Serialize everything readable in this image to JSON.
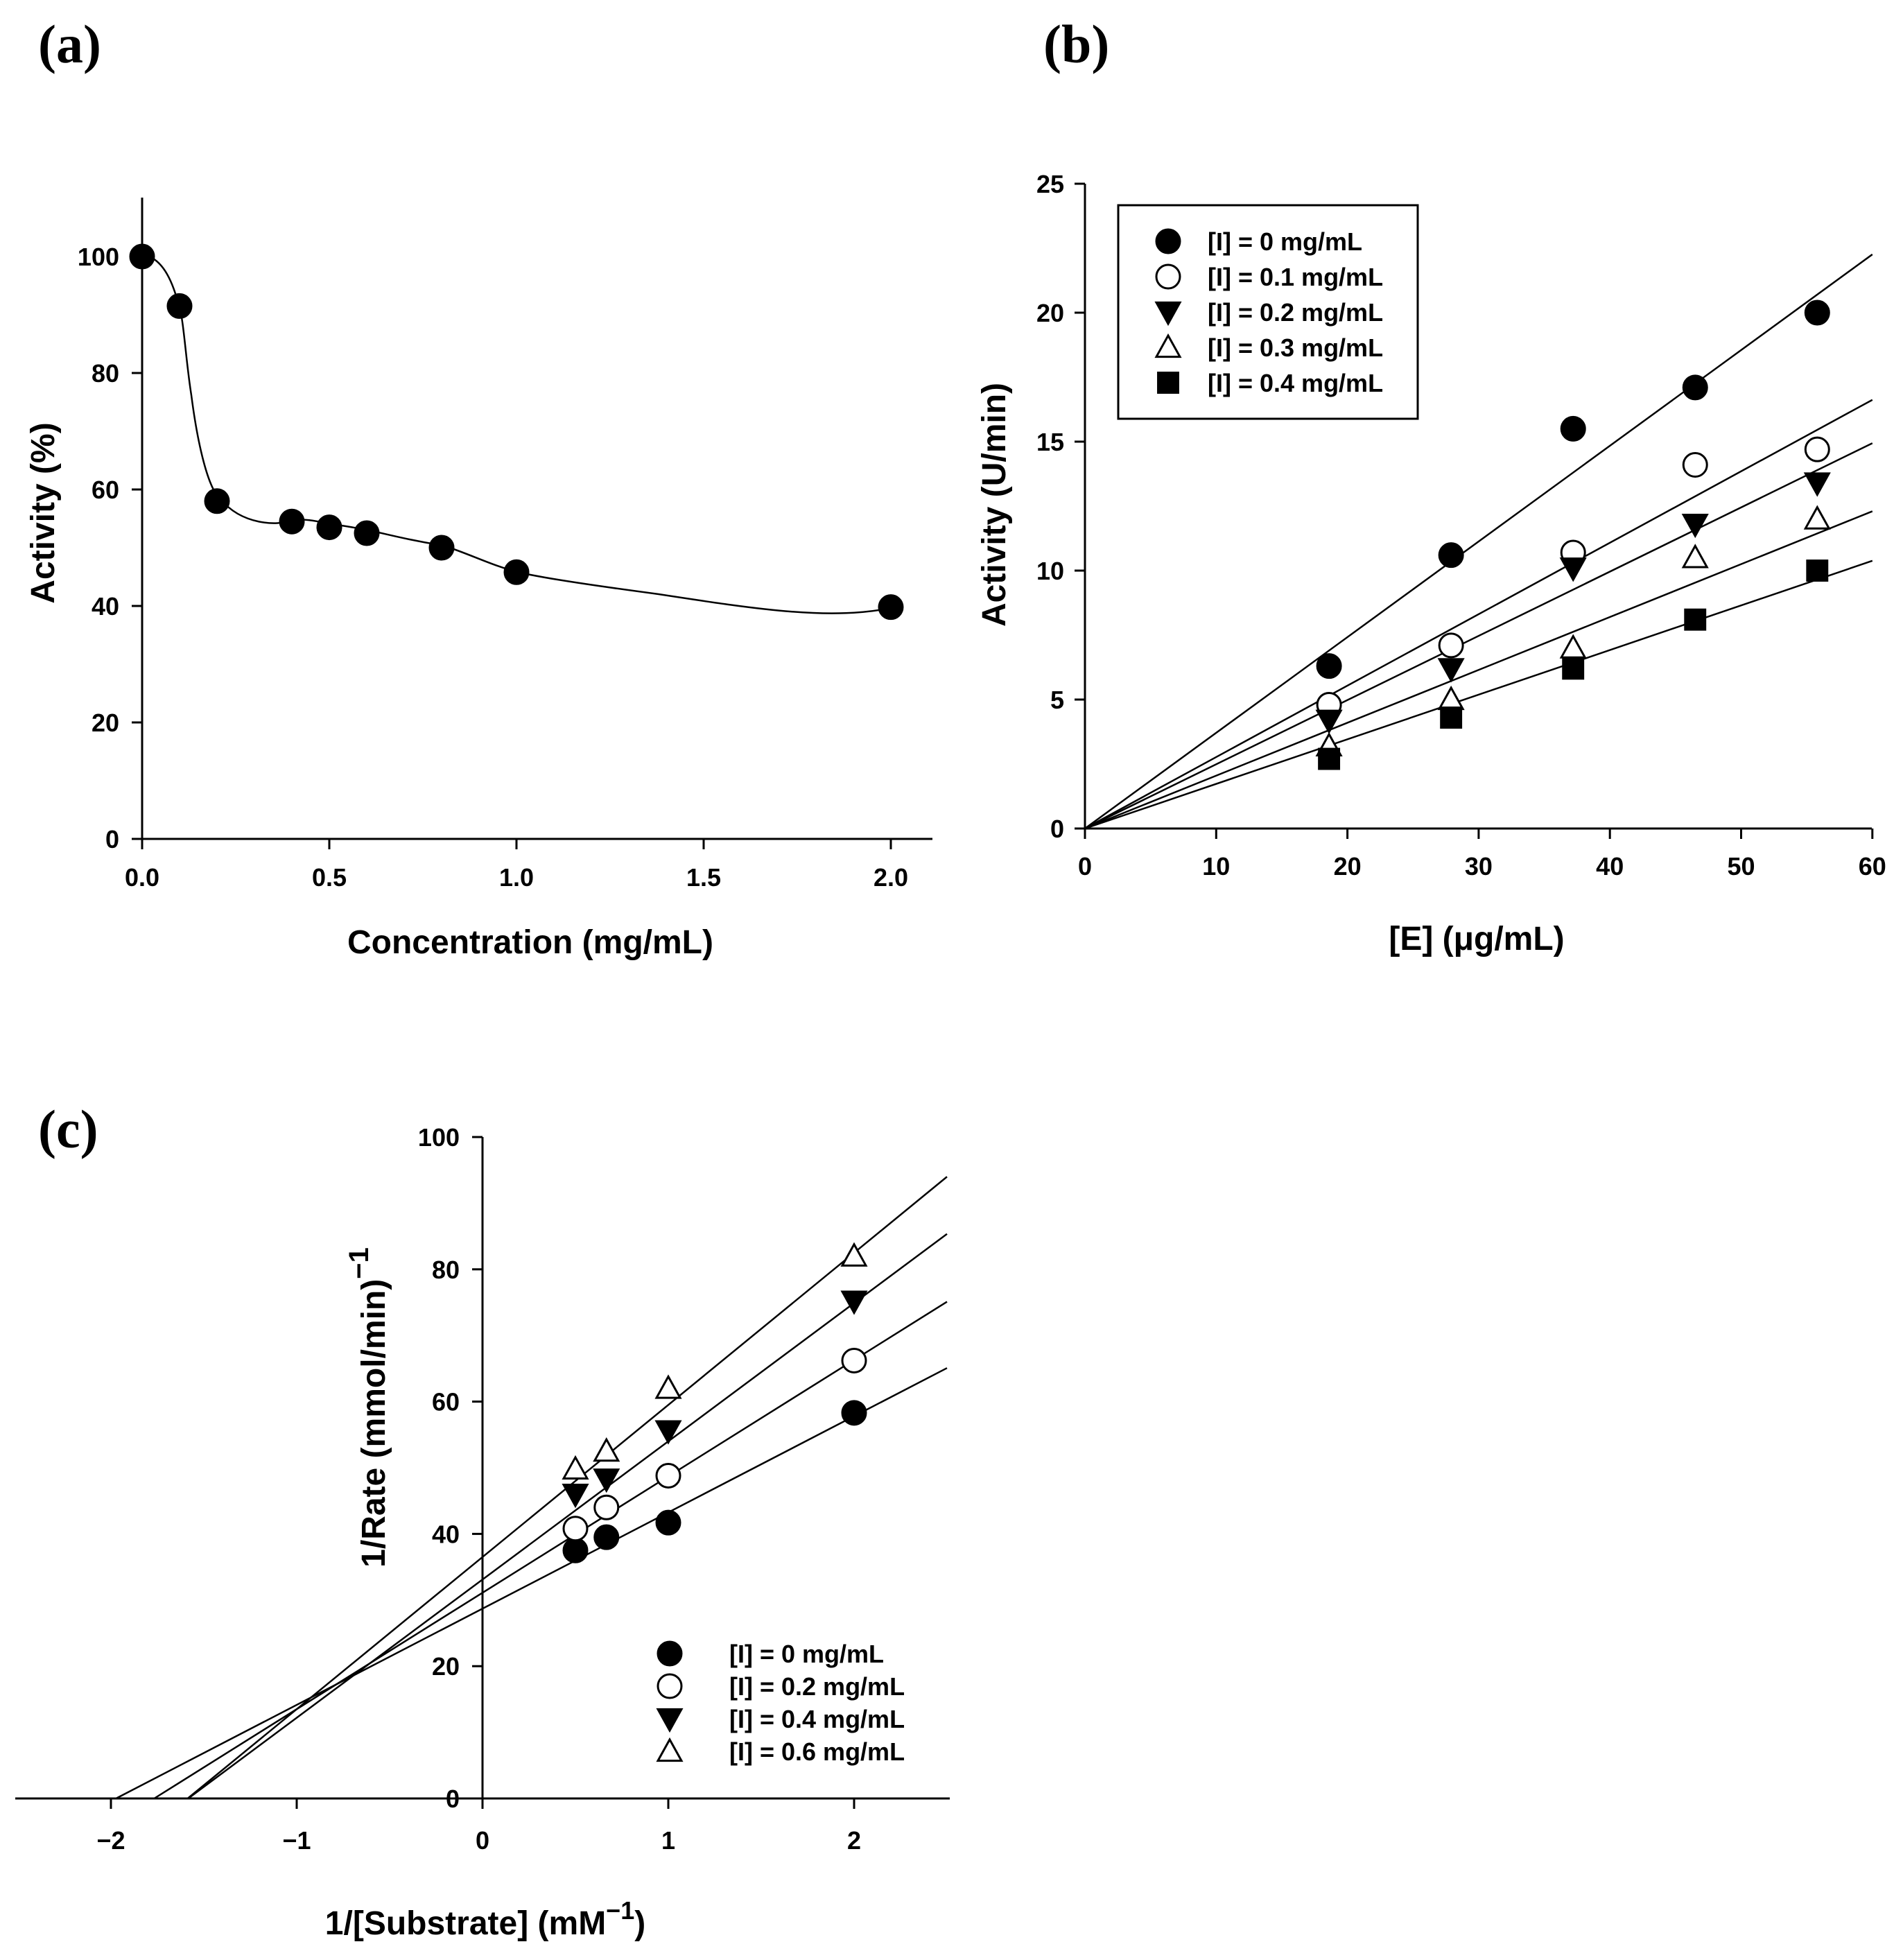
{
  "chart_data": [
    {
      "id": "a",
      "panel_label": "(a)",
      "type": "line",
      "xlabel": "Concentration (mg/mL)",
      "ylabel": "Activity (%)",
      "xlim": [
        0,
        2.1
      ],
      "ylim": [
        0,
        110
      ],
      "xticks": [
        0,
        0.5,
        1,
        1.5,
        2
      ],
      "xtick_labels": [
        "0.0",
        "0.5",
        "1.0",
        "1.5",
        "2.0"
      ],
      "yticks": [
        0,
        20,
        40,
        60,
        80,
        100
      ],
      "ytick_labels": [
        "0",
        "20",
        "40",
        "60",
        "80",
        "100"
      ],
      "series": [
        {
          "name": "Activity",
          "marker": "filled-circle",
          "x": [
            0,
            0.1,
            0.2,
            0.4,
            0.5,
            0.6,
            0.8,
            1.0,
            2.0
          ],
          "y": [
            100,
            91.5,
            58,
            54.5,
            53.5,
            52.5,
            50,
            45.8,
            39.8
          ]
        }
      ]
    },
    {
      "id": "b",
      "panel_label": "(b)",
      "type": "scatter",
      "xlabel": "[E] (μg/mL)",
      "ylabel": "Activity (U/min)",
      "xlim": [
        0,
        60
      ],
      "ylim": [
        0,
        25
      ],
      "xticks": [
        0,
        10,
        20,
        30,
        40,
        50,
        60
      ],
      "xtick_labels": [
        "0",
        "10",
        "20",
        "30",
        "40",
        "50",
        "60"
      ],
      "yticks": [
        0,
        5,
        10,
        15,
        20,
        25
      ],
      "ytick_labels": [
        "0",
        "5",
        "10",
        "15",
        "20",
        "25"
      ],
      "legend_position": "top-left",
      "x": [
        18.6,
        27.9,
        37.2,
        46.5,
        55.8
      ],
      "series": [
        {
          "name": "[I] = 0 mg/mL",
          "marker": "filled-circle",
          "values": [
            6.3,
            10.6,
            15.5,
            17.1,
            20.0
          ],
          "fit_slope": 0.371
        },
        {
          "name": "[I] = 0.1 mg/mL",
          "marker": "open-circle",
          "values": [
            4.8,
            7.1,
            10.7,
            14.1,
            14.7
          ],
          "fit_slope": 0.277
        },
        {
          "name": "[I] = 0.2 mg/mL",
          "marker": "filled-triangle-down",
          "values": [
            4.2,
            6.2,
            10.1,
            11.8,
            13.4
          ],
          "fit_slope": 0.249
        },
        {
          "name": "[I] = 0.3 mg/mL",
          "marker": "open-triangle-up",
          "values": [
            3.2,
            5.0,
            7.0,
            10.5,
            12.0
          ],
          "fit_slope": 0.205
        },
        {
          "name": "[I] = 0.4 mg/mL",
          "marker": "filled-square",
          "values": [
            2.7,
            4.3,
            6.2,
            8.1,
            10.0
          ],
          "fit_slope": 0.173
        }
      ]
    },
    {
      "id": "c",
      "panel_label": "(c)",
      "type": "scatter",
      "xlabel_base": "1/[Substrate] (mM",
      "xlabel_sup": "−1",
      "xlabel_end": ")",
      "ylabel_base": "1/Rate (mmol/min)",
      "ylabel_sup": "−1",
      "xlim": [
        -2.5,
        2.5
      ],
      "ylim": [
        0,
        100
      ],
      "xticks": [
        -2,
        -1,
        0,
        1,
        2
      ],
      "xtick_labels": [
        "−2",
        "−1",
        "0",
        "1",
        "2"
      ],
      "yticks": [
        0,
        20,
        40,
        60,
        80,
        100
      ],
      "ytick_labels": [
        "0",
        "20",
        "40",
        "60",
        "80",
        "100"
      ],
      "legend_position": "bottom-right",
      "x": [
        0.5,
        0.667,
        1.0,
        2.0
      ],
      "series": [
        {
          "name": "[I] = 0 mg/mL",
          "marker": "filled-circle",
          "values": [
            37.5,
            39.5,
            41.7,
            58.3
          ],
          "fit_slope": 14.55,
          "fit_intercept": 28.7
        },
        {
          "name": "[I] = 0.2 mg/mL",
          "marker": "open-circle",
          "values": [
            40.8,
            44.0,
            48.8,
            66.2
          ],
          "fit_slope": 17.6,
          "fit_intercept": 31.1
        },
        {
          "name": "[I] = 0.4 mg/mL",
          "marker": "filled-triangle-down",
          "values": [
            46.0,
            48.3,
            55.6,
            75.2
          ],
          "fit_slope": 20.9,
          "fit_intercept": 33.1
        },
        {
          "name": "[I] = 0.6 mg/mL",
          "marker": "open-triangle-up",
          "values": [
            49.8,
            52.5,
            62.0,
            82.0
          ],
          "fit_slope": 23.0,
          "fit_intercept": 36.5
        }
      ]
    }
  ]
}
